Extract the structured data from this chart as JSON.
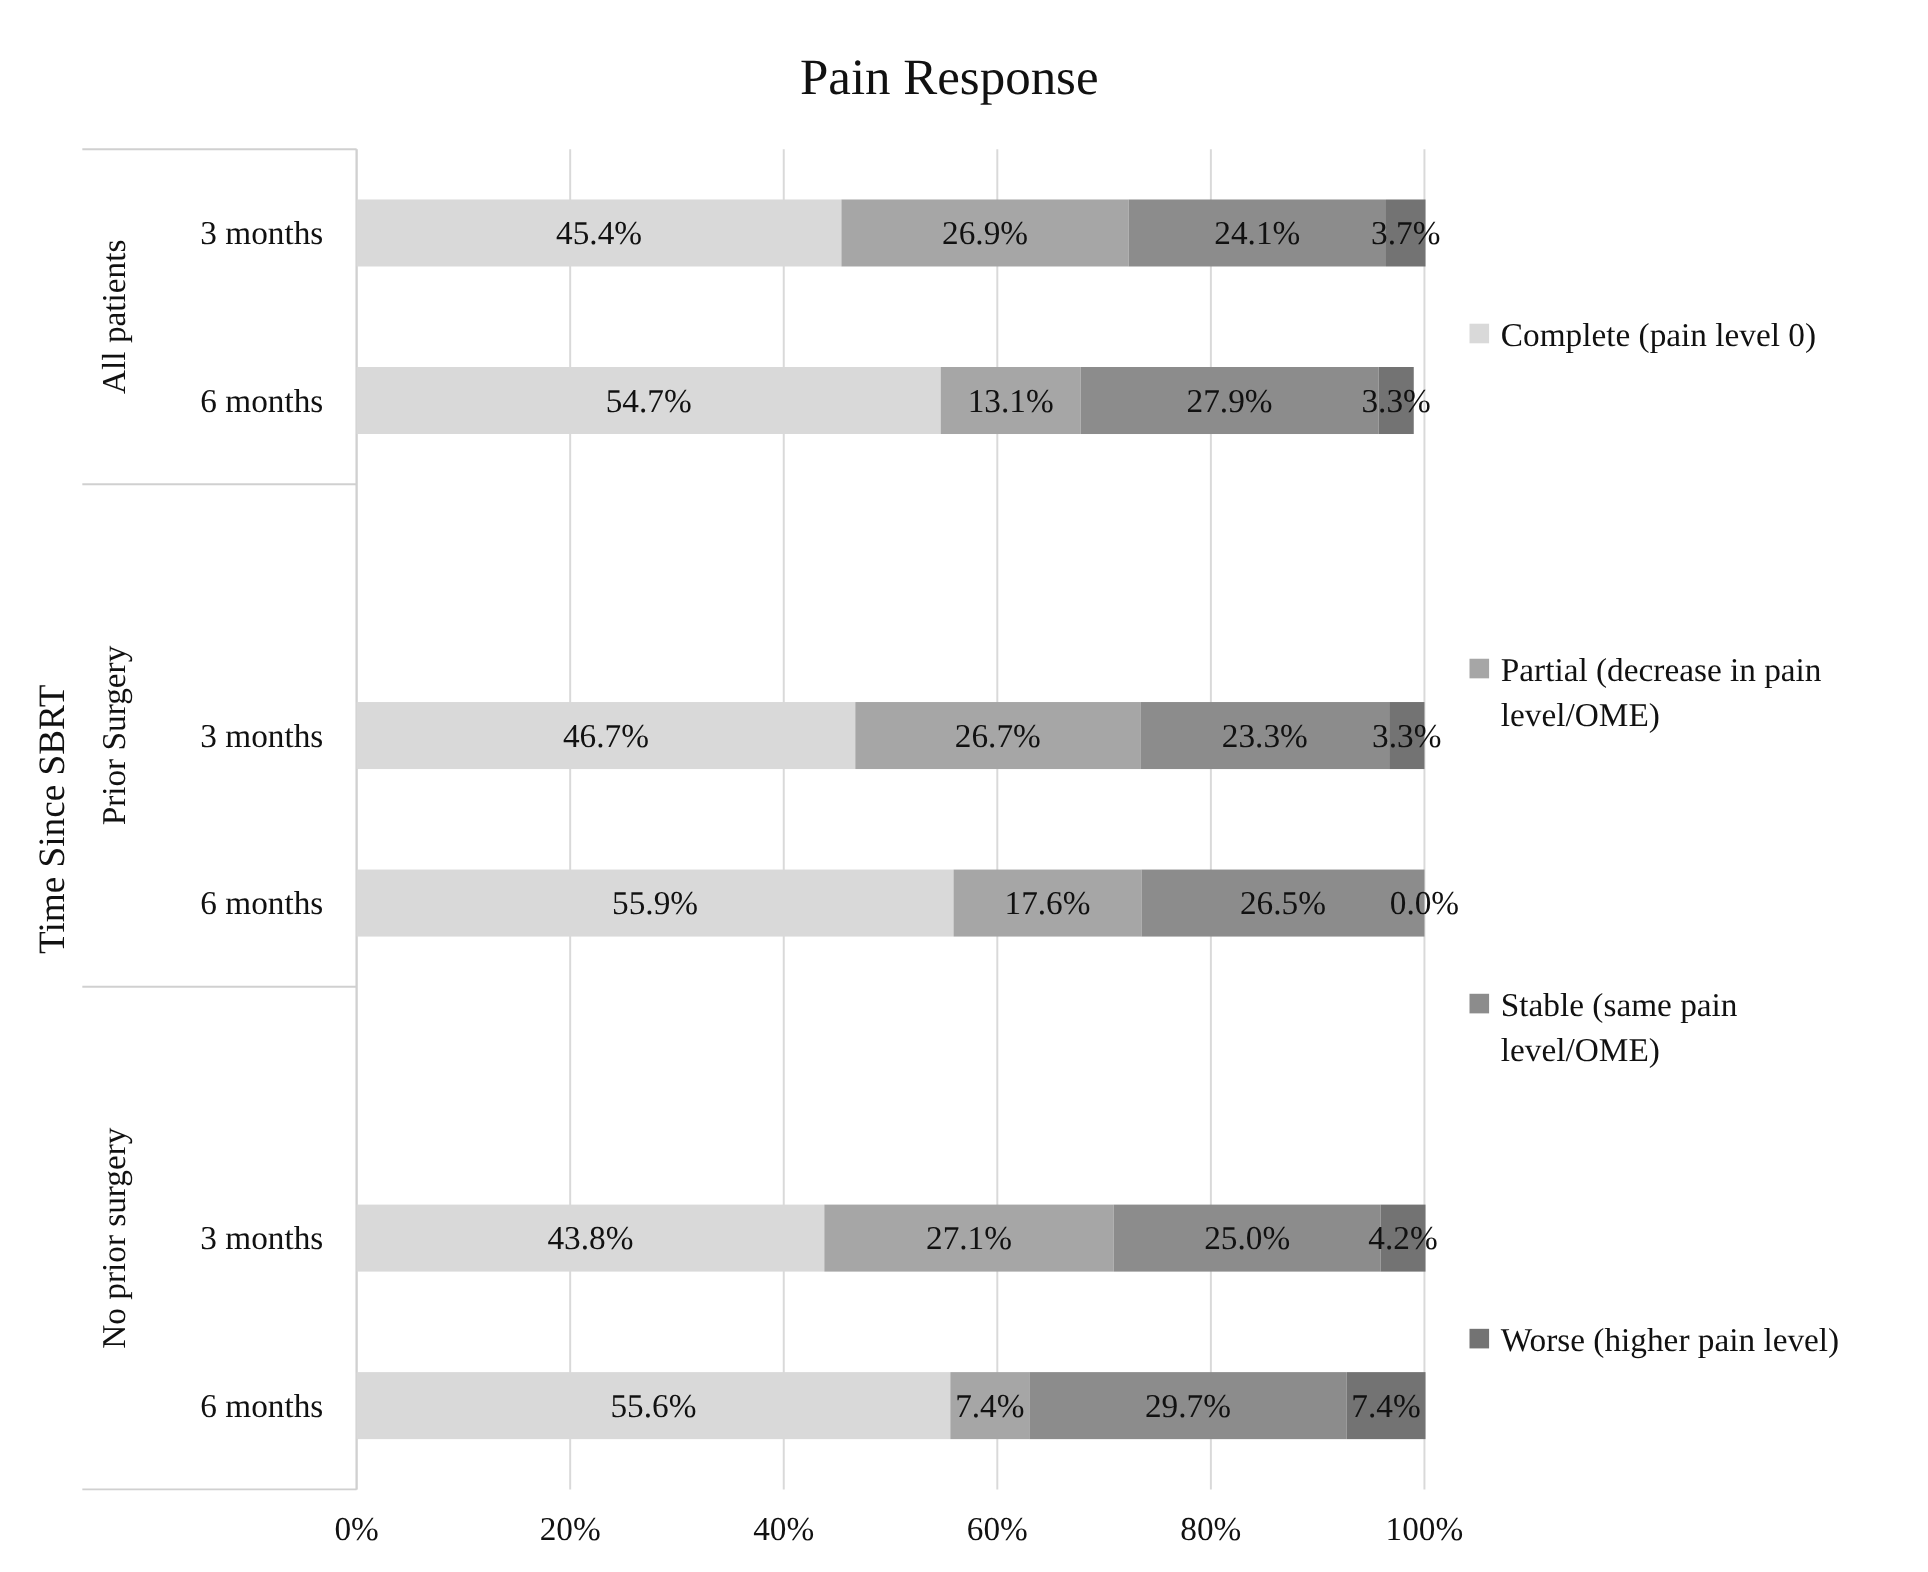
{
  "chart_data": {
    "type": "bar",
    "orientation": "horizontal",
    "stacked": true,
    "title": "Pain Response",
    "ylabel": "Time Since SBRT",
    "categories": [
      "3 months",
      "6 months",
      null,
      "3 months",
      "6 months",
      null,
      "3 months",
      "6 months"
    ],
    "annotations": [
      "All patients",
      "Prior Surgery",
      "No prior surgery"
    ],
    "series": [
      {
        "name": "Complete (pain level 0)",
        "color": "#d9d9d9",
        "values": [
          45.4,
          54.7,
          null,
          46.7,
          55.9,
          null,
          43.8,
          55.6
        ],
        "value_labels": [
          "45.4%",
          "54.7%",
          null,
          "46.7%",
          "55.9%",
          null,
          "43.8%",
          "55.6%"
        ]
      },
      {
        "name": "Partial (decrease in pain level/OME)",
        "color": "#a6a6a6",
        "values": [
          26.9,
          13.1,
          null,
          26.7,
          17.6,
          null,
          27.1,
          7.4
        ],
        "value_labels": [
          "26.9%",
          "13.1%",
          null,
          "26.7%",
          "17.6%",
          null,
          "27.1%",
          "7.4%"
        ]
      },
      {
        "name": "Stable (same pain level/OME)",
        "color": "#8c8c8c",
        "values": [
          24.1,
          27.9,
          null,
          23.3,
          26.5,
          null,
          25.0,
          29.7
        ],
        "value_labels": [
          "24.1%",
          "27.9%",
          null,
          "23.3%",
          "26.5%",
          null,
          "25.0%",
          "29.7%"
        ]
      },
      {
        "name": "Worse (higher pain level)",
        "color": "#737373",
        "values": [
          3.7,
          3.3,
          null,
          3.3,
          0.0,
          null,
          4.2,
          7.4
        ],
        "value_labels": [
          "3.7%",
          "3.3%",
          null,
          "3.3%",
          "0.0%",
          null,
          "4.2%",
          "7.4%"
        ]
      }
    ],
    "xlim": [
      0,
      100
    ],
    "xticks": [
      {
        "value": 0,
        "label": "0%"
      },
      {
        "value": 20,
        "label": "20%"
      },
      {
        "value": 40,
        "label": "40%"
      },
      {
        "value": 60,
        "label": "60%"
      },
      {
        "value": 80,
        "label": "80%"
      },
      {
        "value": 100,
        "label": "100%"
      }
    ],
    "grid": "x",
    "legend": "right"
  }
}
